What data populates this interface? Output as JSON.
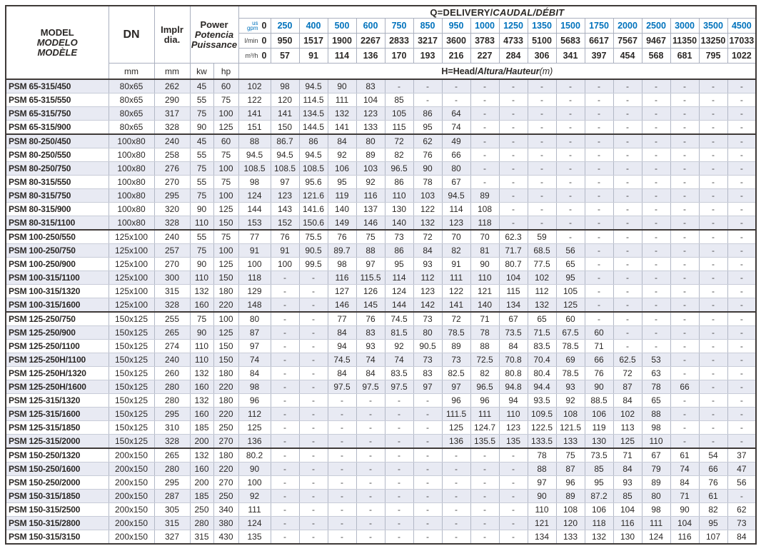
{
  "table": {
    "header": {
      "model_lines": [
        "MODEL",
        "MODELO",
        "MODÈLE"
      ],
      "dn_label": "DN",
      "impeller_lines": [
        "Implr",
        "dia."
      ],
      "power_lines": [
        "Power",
        "Potencia",
        "Puissance"
      ],
      "q_title_plain": "Q=DELIVERY/",
      "q_title_italic": "CAUDAL/DÉBIT",
      "h_title_plain": "H=Head/",
      "h_title_italic": "Altura/Hauteur",
      "h_title_suffix": "(m)",
      "units": {
        "dn": "mm",
        "impeller": "mm",
        "power_kw": "kw",
        "power_hp": "hp"
      },
      "flow_rows": [
        {
          "unit": "us gpm",
          "label_lines": [
            "us",
            "gpm"
          ],
          "zero": "0",
          "values": [
            "250",
            "400",
            "500",
            "600",
            "750",
            "850",
            "950",
            "1000",
            "1250",
            "1350",
            "1500",
            "1750",
            "2000",
            "2500",
            "3000",
            "3500",
            "4500"
          ]
        },
        {
          "unit": "l/min",
          "label_lines": [
            "l/min"
          ],
          "zero": "0",
          "values": [
            "950",
            "1517",
            "1900",
            "2267",
            "2833",
            "3217",
            "3600",
            "3783",
            "4733",
            "5100",
            "5683",
            "6617",
            "7567",
            "9467",
            "11350",
            "13250",
            "17033"
          ]
        },
        {
          "unit": "m³/h",
          "label_lines": [
            "m³/h"
          ],
          "zero": "0",
          "values": [
            "57",
            "91",
            "114",
            "136",
            "170",
            "193",
            "216",
            "227",
            "284",
            "306",
            "341",
            "397",
            "454",
            "568",
            "681",
            "795",
            "1022"
          ]
        }
      ]
    },
    "group_start_indices": [
      4,
      11,
      17,
      27
    ],
    "rows": [
      {
        "model": "PSM 65-315/450",
        "dn": "80x65",
        "impeller": "262",
        "kw": "45",
        "hp": "60",
        "heads": [
          "102",
          "98",
          "94.5",
          "90",
          "83",
          "-",
          "-",
          "-",
          "-",
          "-",
          "-",
          "-",
          "-",
          "-",
          "-",
          "-",
          "-",
          "-"
        ]
      },
      {
        "model": "PSM 65-315/550",
        "dn": "80x65",
        "impeller": "290",
        "kw": "55",
        "hp": "75",
        "heads": [
          "122",
          "120",
          "114.5",
          "111",
          "104",
          "85",
          "-",
          "-",
          "-",
          "-",
          "-",
          "-",
          "-",
          "-",
          "-",
          "-",
          "-",
          "-"
        ]
      },
      {
        "model": "PSM 65-315/750",
        "dn": "80x65",
        "impeller": "317",
        "kw": "75",
        "hp": "100",
        "heads": [
          "141",
          "141",
          "134.5",
          "132",
          "123",
          "105",
          "86",
          "64",
          "-",
          "-",
          "-",
          "-",
          "-",
          "-",
          "-",
          "-",
          "-",
          "-"
        ]
      },
      {
        "model": "PSM 65-315/900",
        "dn": "80x65",
        "impeller": "328",
        "kw": "90",
        "hp": "125",
        "heads": [
          "151",
          "150",
          "144.5",
          "141",
          "133",
          "115",
          "95",
          "74",
          "-",
          "-",
          "-",
          "-",
          "-",
          "-",
          "-",
          "-",
          "-",
          "-"
        ]
      },
      {
        "model": "PSM 80-250/450",
        "dn": "100x80",
        "impeller": "240",
        "kw": "45",
        "hp": "60",
        "heads": [
          "88",
          "86.7",
          "86",
          "84",
          "80",
          "72",
          "62",
          "49",
          "-",
          "-",
          "-",
          "-",
          "-",
          "-",
          "-",
          "-",
          "-",
          "-"
        ]
      },
      {
        "model": "PSM 80-250/550",
        "dn": "100x80",
        "impeller": "258",
        "kw": "55",
        "hp": "75",
        "heads": [
          "94.5",
          "94.5",
          "94.5",
          "92",
          "89",
          "82",
          "76",
          "66",
          "-",
          "-",
          "-",
          "-",
          "-",
          "-",
          "-",
          "-",
          "-",
          "-"
        ]
      },
      {
        "model": "PSM 80-250/750",
        "dn": "100x80",
        "impeller": "276",
        "kw": "75",
        "hp": "100",
        "heads": [
          "108.5",
          "108.5",
          "108.5",
          "106",
          "103",
          "96.5",
          "90",
          "80",
          "-",
          "-",
          "-",
          "-",
          "-",
          "-",
          "-",
          "-",
          "-",
          "-"
        ]
      },
      {
        "model": "PSM 80-315/550",
        "dn": "100x80",
        "impeller": "270",
        "kw": "55",
        "hp": "75",
        "heads": [
          "98",
          "97",
          "95.6",
          "95",
          "92",
          "86",
          "78",
          "67",
          "-",
          "-",
          "-",
          "-",
          "-",
          "-",
          "-",
          "-",
          "-",
          "-"
        ]
      },
      {
        "model": "PSM 80-315/750",
        "dn": "100x80",
        "impeller": "295",
        "kw": "75",
        "hp": "100",
        "heads": [
          "124",
          "123",
          "121.6",
          "119",
          "116",
          "110",
          "103",
          "94.5",
          "89",
          "-",
          "-",
          "-",
          "-",
          "-",
          "-",
          "-",
          "-",
          "-"
        ]
      },
      {
        "model": "PSM 80-315/900",
        "dn": "100x80",
        "impeller": "320",
        "kw": "90",
        "hp": "125",
        "heads": [
          "144",
          "143",
          "141.6",
          "140",
          "137",
          "130",
          "122",
          "114",
          "108",
          "-",
          "-",
          "-",
          "-",
          "-",
          "-",
          "-",
          "-",
          "-"
        ]
      },
      {
        "model": "PSM 80-315/1100",
        "dn": "100x80",
        "impeller": "328",
        "kw": "110",
        "hp": "150",
        "heads": [
          "153",
          "152",
          "150.6",
          "149",
          "146",
          "140",
          "132",
          "123",
          "118",
          "-",
          "-",
          "-",
          "-",
          "-",
          "-",
          "-",
          "-",
          "-"
        ]
      },
      {
        "model": "PSM 100-250/550",
        "dn": "125x100",
        "impeller": "240",
        "kw": "55",
        "hp": "75",
        "heads": [
          "77",
          "76",
          "75.5",
          "76",
          "75",
          "73",
          "72",
          "70",
          "70",
          "62.3",
          "59",
          "-",
          "-",
          "-",
          "-",
          "-",
          "-",
          "-"
        ]
      },
      {
        "model": "PSM 100-250/750",
        "dn": "125x100",
        "impeller": "257",
        "kw": "75",
        "hp": "100",
        "heads": [
          "91",
          "91",
          "90.5",
          "89.7",
          "88",
          "86",
          "84",
          "82",
          "81",
          "71.7",
          "68.5",
          "56",
          "-",
          "-",
          "-",
          "-",
          "-",
          "-"
        ]
      },
      {
        "model": "PSM 100-250/900",
        "dn": "125x100",
        "impeller": "270",
        "kw": "90",
        "hp": "125",
        "heads": [
          "100",
          "100",
          "99.5",
          "98",
          "97",
          "95",
          "93",
          "91",
          "90",
          "80.7",
          "77.5",
          "65",
          "-",
          "-",
          "-",
          "-",
          "-",
          "-"
        ]
      },
      {
        "model": "PSM 100-315/1100",
        "dn": "125x100",
        "impeller": "300",
        "kw": "110",
        "hp": "150",
        "heads": [
          "118",
          "-",
          "-",
          "116",
          "115.5",
          "114",
          "112",
          "111",
          "110",
          "104",
          "102",
          "95",
          "-",
          "-",
          "-",
          "-",
          "-",
          "-"
        ]
      },
      {
        "model": "PSM 100-315/1320",
        "dn": "125x100",
        "impeller": "315",
        "kw": "132",
        "hp": "180",
        "heads": [
          "129",
          "-",
          "-",
          "127",
          "126",
          "124",
          "123",
          "122",
          "121",
          "115",
          "112",
          "105",
          "-",
          "-",
          "-",
          "-",
          "-",
          "-"
        ]
      },
      {
        "model": "PSM 100-315/1600",
        "dn": "125x100",
        "impeller": "328",
        "kw": "160",
        "hp": "220",
        "heads": [
          "148",
          "-",
          "-",
          "146",
          "145",
          "144",
          "142",
          "141",
          "140",
          "134",
          "132",
          "125",
          "-",
          "-",
          "-",
          "-",
          "-",
          "-"
        ]
      },
      {
        "model": "PSM 125-250/750",
        "dn": "150x125",
        "impeller": "255",
        "kw": "75",
        "hp": "100",
        "heads": [
          "80",
          "-",
          "-",
          "77",
          "76",
          "74.5",
          "73",
          "72",
          "71",
          "67",
          "65",
          "60",
          "-",
          "-",
          "-",
          "-",
          "-",
          "-"
        ]
      },
      {
        "model": "PSM 125-250/900",
        "dn": "150x125",
        "impeller": "265",
        "kw": "90",
        "hp": "125",
        "heads": [
          "87",
          "-",
          "-",
          "84",
          "83",
          "81.5",
          "80",
          "78.5",
          "78",
          "73.5",
          "71.5",
          "67.5",
          "60",
          "-",
          "-",
          "-",
          "-",
          "-"
        ]
      },
      {
        "model": "PSM 125-250/1100",
        "dn": "150x125",
        "impeller": "274",
        "kw": "110",
        "hp": "150",
        "heads": [
          "97",
          "-",
          "-",
          "94",
          "93",
          "92",
          "90.5",
          "89",
          "88",
          "84",
          "83.5",
          "78.5",
          "71",
          "-",
          "-",
          "-",
          "-",
          "-"
        ]
      },
      {
        "model": "PSM 125-250H/1100",
        "dn": "150x125",
        "impeller": "240",
        "kw": "110",
        "hp": "150",
        "heads": [
          "74",
          "-",
          "-",
          "74.5",
          "74",
          "74",
          "73",
          "73",
          "72.5",
          "70.8",
          "70.4",
          "69",
          "66",
          "62.5",
          "53",
          "-",
          "-",
          "-"
        ]
      },
      {
        "model": "PSM 125-250H/1320",
        "dn": "150x125",
        "impeller": "260",
        "kw": "132",
        "hp": "180",
        "heads": [
          "84",
          "-",
          "-",
          "84",
          "84",
          "83.5",
          "83",
          "82.5",
          "82",
          "80.8",
          "80.4",
          "78.5",
          "76",
          "72",
          "63",
          "-",
          "-",
          "-"
        ]
      },
      {
        "model": "PSM 125-250H/1600",
        "dn": "150x125",
        "impeller": "280",
        "kw": "160",
        "hp": "220",
        "heads": [
          "98",
          "-",
          "-",
          "97.5",
          "97.5",
          "97.5",
          "97",
          "97",
          "96.5",
          "94.8",
          "94.4",
          "93",
          "90",
          "87",
          "78",
          "66",
          "-",
          "-"
        ]
      },
      {
        "model": "PSM 125-315/1320",
        "dn": "150x125",
        "impeller": "280",
        "kw": "132",
        "hp": "180",
        "heads": [
          "96",
          "-",
          "-",
          "-",
          "-",
          "-",
          "-",
          "96",
          "96",
          "94",
          "93.5",
          "92",
          "88.5",
          "84",
          "65",
          "-",
          "-",
          "-"
        ]
      },
      {
        "model": "PSM 125-315/1600",
        "dn": "150x125",
        "impeller": "295",
        "kw": "160",
        "hp": "220",
        "heads": [
          "112",
          "-",
          "-",
          "-",
          "-",
          "-",
          "-",
          "111.5",
          "111",
          "110",
          "109.5",
          "108",
          "106",
          "102",
          "88",
          "-",
          "-",
          "-"
        ]
      },
      {
        "model": "PSM 125-315/1850",
        "dn": "150x125",
        "impeller": "310",
        "kw": "185",
        "hp": "250",
        "heads": [
          "125",
          "-",
          "-",
          "-",
          "-",
          "-",
          "-",
          "125",
          "124.7",
          "123",
          "122.5",
          "121.5",
          "119",
          "113",
          "98",
          "-",
          "-",
          "-"
        ]
      },
      {
        "model": "PSM 125-315/2000",
        "dn": "150x125",
        "impeller": "328",
        "kw": "200",
        "hp": "270",
        "heads": [
          "136",
          "-",
          "-",
          "-",
          "-",
          "-",
          "-",
          "136",
          "135.5",
          "135",
          "133.5",
          "133",
          "130",
          "125",
          "110",
          "-",
          "-",
          "-"
        ]
      },
      {
        "model": "PSM 150-250/1320",
        "dn": "200x150",
        "impeller": "265",
        "kw": "132",
        "hp": "180",
        "heads": [
          "80.2",
          "-",
          "-",
          "-",
          "-",
          "-",
          "-",
          "-",
          "-",
          "-",
          "78",
          "75",
          "73.5",
          "71",
          "67",
          "61",
          "54",
          "37"
        ]
      },
      {
        "model": "PSM 150-250/1600",
        "dn": "200x150",
        "impeller": "280",
        "kw": "160",
        "hp": "220",
        "heads": [
          "90",
          "-",
          "-",
          "-",
          "-",
          "-",
          "-",
          "-",
          "-",
          "-",
          "88",
          "87",
          "85",
          "84",
          "79",
          "74",
          "66",
          "47"
        ]
      },
      {
        "model": "PSM 150-250/2000",
        "dn": "200x150",
        "impeller": "295",
        "kw": "200",
        "hp": "270",
        "heads": [
          "100",
          "-",
          "-",
          "-",
          "-",
          "-",
          "-",
          "-",
          "-",
          "-",
          "97",
          "96",
          "95",
          "93",
          "89",
          "84",
          "76",
          "56"
        ]
      },
      {
        "model": "PSM 150-315/1850",
        "dn": "200x150",
        "impeller": "287",
        "kw": "185",
        "hp": "250",
        "heads": [
          "92",
          "-",
          "-",
          "-",
          "-",
          "-",
          "-",
          "-",
          "-",
          "-",
          "90",
          "89",
          "87.2",
          "85",
          "80",
          "71",
          "61",
          "-"
        ]
      },
      {
        "model": "PSM 150-315/2500",
        "dn": "200x150",
        "impeller": "305",
        "kw": "250",
        "hp": "340",
        "heads": [
          "111",
          "-",
          "-",
          "-",
          "-",
          "-",
          "-",
          "-",
          "-",
          "-",
          "110",
          "108",
          "106",
          "104",
          "98",
          "90",
          "82",
          "62"
        ]
      },
      {
        "model": "PSM 150-315/2800",
        "dn": "200x150",
        "impeller": "315",
        "kw": "280",
        "hp": "380",
        "heads": [
          "124",
          "-",
          "-",
          "-",
          "-",
          "-",
          "-",
          "-",
          "-",
          "-",
          "121",
          "120",
          "118",
          "116",
          "111",
          "104",
          "95",
          "73"
        ]
      },
      {
        "model": "PSM 150-315/3150",
        "dn": "200x150",
        "impeller": "327",
        "kw": "315",
        "hp": "430",
        "heads": [
          "135",
          "-",
          "-",
          "-",
          "-",
          "-",
          "-",
          "-",
          "-",
          "-",
          "134",
          "133",
          "132",
          "130",
          "124",
          "116",
          "107",
          "84"
        ]
      }
    ],
    "colors": {
      "accent_blue": "#0072bc",
      "stripe": "#e8eaf3",
      "border_dark": "#3f3a38",
      "grid_line": "#aab0bf"
    }
  }
}
